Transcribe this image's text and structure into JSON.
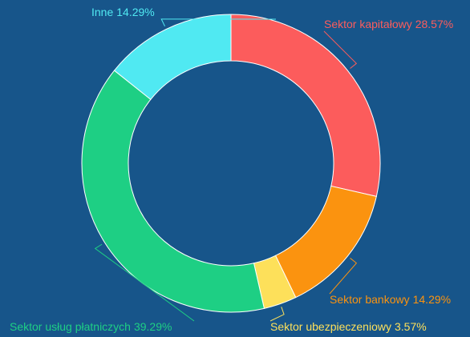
{
  "chart_data": {
    "type": "donut",
    "categories": [
      "Sektor kapitałowy",
      "Sektor bankowy",
      "Sektor ubezpieczeniowy",
      "Sektor usług płatniczych",
      "Inne"
    ],
    "values": [
      28.57,
      14.29,
      3.57,
      39.29,
      14.29
    ],
    "value_labels": [
      "28.57%",
      "14.29%",
      "3.57%",
      "39.29%",
      "14.29%"
    ],
    "colors": [
      "#fc5c5c",
      "#fb930f",
      "#fde05a",
      "#1ecf84",
      "#50e9f2"
    ]
  }
}
